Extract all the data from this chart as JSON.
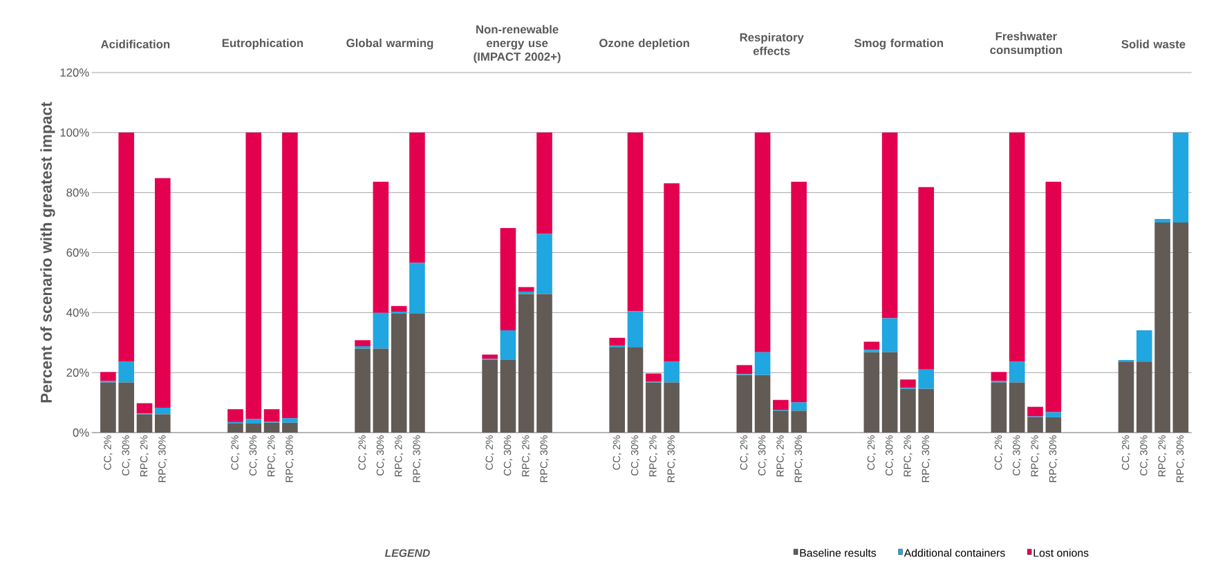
{
  "chart_data": {
    "type": "bar",
    "stacked": true,
    "ylabel": "Percent of scenario with greatest impact",
    "legend_title": "LEGEND",
    "legend": "bottom",
    "grid": "y",
    "categories": [
      "CC, 2%",
      "CC, 30%",
      "RPC, 2%",
      "RPC, 30%",
      null,
      null,
      null,
      "CC, 2%",
      "CC, 30%",
      "RPC, 2%",
      "RPC, 30%",
      null,
      null,
      null,
      "CC, 2%",
      "CC, 30%",
      "RPC, 2%",
      "RPC, 30%",
      null,
      null,
      null,
      "CC, 2%",
      "CC, 30%",
      "RPC, 2%",
      "RPC, 30%",
      null,
      null,
      null,
      "CC, 2%",
      "CC, 30%",
      "RPC, 2%",
      "RPC, 30%",
      null,
      null,
      null,
      "CC, 2%",
      "CC, 30%",
      "RPC, 2%",
      "RPC, 30%",
      null,
      null,
      null,
      "CC, 2%",
      "CC, 30%",
      "RPC, 2%",
      "RPC, 30%",
      null,
      null,
      null,
      "CC, 2%",
      "CC, 30%",
      "RPC, 2%",
      "RPC, 30%",
      null,
      null,
      null,
      "CC, 2%",
      "CC, 30%",
      "RPC, 2%",
      "RPC, 30%"
    ],
    "annotations": [
      "Acidification",
      "Eutrophication",
      "Global warming",
      "Non-renewable energy use (IMPACT 2002+)",
      "Ozone depletion",
      "Respiratory effects",
      "Smog formation",
      "Freshwater consumption",
      "Solid waste"
    ],
    "series": [
      {
        "name": "Baseline results",
        "color": "#625a55",
        "values": [
          16.7,
          16.7,
          6.1,
          6.1,
          null,
          null,
          null,
          3.0,
          3.0,
          3.3,
          3.3,
          null,
          null,
          null,
          28.0,
          28.0,
          39.6,
          39.6,
          null,
          null,
          null,
          24.2,
          24.2,
          46.2,
          46.2,
          null,
          null,
          null,
          28.5,
          28.5,
          16.7,
          16.7,
          null,
          null,
          null,
          19.2,
          19.2,
          7.3,
          7.3,
          null,
          null,
          null,
          26.8,
          26.8,
          14.6,
          14.6,
          null,
          null,
          null,
          16.7,
          16.7,
          5.1,
          5.1,
          null,
          null,
          null,
          23.7,
          23.7,
          70.0,
          70.0
        ]
      },
      {
        "name": "Additional containers",
        "color": "#20a6e0",
        "values": [
          0.5,
          7.0,
          0.3,
          2.2,
          null,
          null,
          null,
          0.5,
          1.5,
          0.3,
          1.5,
          null,
          null,
          null,
          0.8,
          11.9,
          0.7,
          17.0,
          null,
          null,
          null,
          0.4,
          9.9,
          0.8,
          20.0,
          null,
          null,
          null,
          0.5,
          11.9,
          0.3,
          7.0,
          null,
          null,
          null,
          0.3,
          7.6,
          0.3,
          2.8,
          null,
          null,
          null,
          0.8,
          11.3,
          0.4,
          6.4,
          null,
          null,
          null,
          0.5,
          7.0,
          0.3,
          1.7,
          null,
          null,
          null,
          0.5,
          10.4,
          1.2,
          30.0
        ]
      },
      {
        "name": "Lost onions",
        "color": "#e3004f",
        "values": [
          3.0,
          76.3,
          3.4,
          76.5,
          null,
          null,
          null,
          4.3,
          95.5,
          4.2,
          95.2,
          null,
          null,
          null,
          2.0,
          43.7,
          1.9,
          43.4,
          null,
          null,
          null,
          1.4,
          34.1,
          1.5,
          33.8,
          null,
          null,
          null,
          2.6,
          59.6,
          2.7,
          59.4,
          null,
          null,
          null,
          3.0,
          73.2,
          3.3,
          73.5,
          null,
          null,
          null,
          2.7,
          61.9,
          2.7,
          60.8,
          null,
          null,
          null,
          3.0,
          76.3,
          3.2,
          76.8,
          null,
          null,
          null,
          null,
          null,
          null,
          null
        ]
      }
    ],
    "ylim": [
      0,
      120
    ],
    "yticks": [
      {
        "value": 0,
        "label": "0%"
      },
      {
        "value": 20,
        "label": "20%"
      },
      {
        "value": 40,
        "label": "40%"
      },
      {
        "value": 60,
        "label": "60%"
      },
      {
        "value": 80,
        "label": "80%"
      },
      {
        "value": 100,
        "label": "100%"
      },
      {
        "value": 120,
        "label": "120%"
      }
    ]
  }
}
